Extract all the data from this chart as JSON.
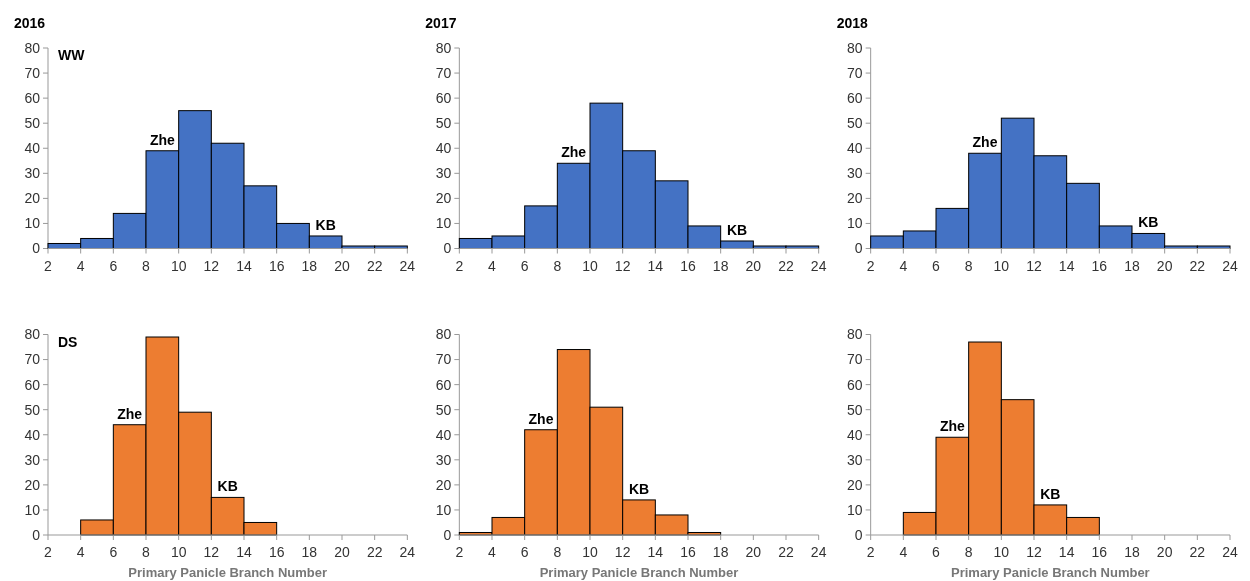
{
  "chart_data": [
    {
      "type": "histogram",
      "title": "2016",
      "bins": [
        2,
        4,
        6,
        8,
        10,
        12,
        14,
        16,
        18,
        20,
        22,
        24
      ],
      "values": [
        2,
        4,
        14,
        39,
        55,
        42,
        25,
        10,
        5,
        1,
        1
      ],
      "color": "#4472c4",
      "xlim": [
        2,
        24
      ],
      "xticks": [
        2,
        4,
        6,
        8,
        10,
        12,
        14,
        16,
        18,
        20,
        22,
        24
      ],
      "ylim": [
        0,
        80
      ],
      "yticks": [
        0,
        10,
        20,
        30,
        40,
        50,
        60,
        70,
        80
      ],
      "annotations": [
        "WW",
        {
          "text": "Zhe",
          "x": 9,
          "y": 39
        },
        {
          "text": "KB",
          "x": 19,
          "y": 5
        }
      ]
    },
    {
      "type": "histogram",
      "title": "2017",
      "bins": [
        2,
        4,
        6,
        8,
        10,
        12,
        14,
        16,
        18,
        20,
        22,
        24
      ],
      "values": [
        4,
        5,
        17,
        34,
        58,
        39,
        27,
        9,
        3,
        1,
        1
      ],
      "color": "#4472c4",
      "xlim": [
        2,
        24
      ],
      "xticks": [
        2,
        4,
        6,
        8,
        10,
        12,
        14,
        16,
        18,
        20,
        22,
        24
      ],
      "ylim": [
        0,
        80
      ],
      "yticks": [
        0,
        10,
        20,
        30,
        40,
        50,
        60,
        70,
        80
      ],
      "annotations": [
        {
          "text": "Zhe",
          "x": 9,
          "y": 34
        },
        {
          "text": "KB",
          "x": 19,
          "y": 3
        }
      ]
    },
    {
      "type": "histogram",
      "title": "2018",
      "bins": [
        2,
        4,
        6,
        8,
        10,
        12,
        14,
        16,
        18,
        20,
        22,
        24
      ],
      "values": [
        5,
        7,
        16,
        38,
        52,
        37,
        26,
        9,
        6,
        1,
        1
      ],
      "color": "#4472c4",
      "xlim": [
        2,
        24
      ],
      "xticks": [
        2,
        4,
        6,
        8,
        10,
        12,
        14,
        16,
        18,
        20,
        22,
        24
      ],
      "ylim": [
        0,
        80
      ],
      "yticks": [
        0,
        10,
        20,
        30,
        40,
        50,
        60,
        70,
        80
      ],
      "annotations": [
        {
          "text": "Zhe",
          "x": 9,
          "y": 38
        },
        {
          "text": "KB",
          "x": 19,
          "y": 6
        }
      ]
    },
    {
      "type": "histogram",
      "xlabel": "Primary Panicle Branch Number",
      "bins": [
        2,
        4,
        6,
        8,
        10,
        12,
        14,
        16,
        18,
        20,
        22,
        24
      ],
      "values": [
        0,
        6,
        44,
        79,
        49,
        15,
        5,
        0,
        0,
        0,
        0
      ],
      "color": "#ed7d31",
      "xlim": [
        2,
        24
      ],
      "xticks": [
        2,
        4,
        6,
        8,
        10,
        12,
        14,
        16,
        18,
        20,
        22,
        24
      ],
      "ylim": [
        0,
        80
      ],
      "yticks": [
        0,
        10,
        20,
        30,
        40,
        50,
        60,
        70,
        80
      ],
      "annotations": [
        "DS",
        {
          "text": "Zhe",
          "x": 7,
          "y": 44
        },
        {
          "text": "KB",
          "x": 13,
          "y": 15
        }
      ]
    },
    {
      "type": "histogram",
      "xlabel": "Primary Panicle Branch Number",
      "bins": [
        2,
        4,
        6,
        8,
        10,
        12,
        14,
        16,
        18,
        20,
        22,
        24
      ],
      "values": [
        1,
        7,
        42,
        74,
        51,
        14,
        8,
        1,
        0,
        0,
        0
      ],
      "color": "#ed7d31",
      "xlim": [
        2,
        24
      ],
      "xticks": [
        2,
        4,
        6,
        8,
        10,
        12,
        14,
        16,
        18,
        20,
        22,
        24
      ],
      "ylim": [
        0,
        80
      ],
      "yticks": [
        0,
        10,
        20,
        30,
        40,
        50,
        60,
        70,
        80
      ],
      "annotations": [
        {
          "text": "Zhe",
          "x": 7,
          "y": 42
        },
        {
          "text": "KB",
          "x": 13,
          "y": 14
        }
      ]
    },
    {
      "type": "histogram",
      "xlabel": "Primary Panicle Branch Number",
      "bins": [
        2,
        4,
        6,
        8,
        10,
        12,
        14,
        16,
        18,
        20,
        22,
        24
      ],
      "values": [
        0,
        9,
        39,
        77,
        54,
        12,
        7,
        0,
        0,
        0,
        0
      ],
      "color": "#ed7d31",
      "xlim": [
        2,
        24
      ],
      "xticks": [
        2,
        4,
        6,
        8,
        10,
        12,
        14,
        16,
        18,
        20,
        22,
        24
      ],
      "ylim": [
        0,
        80
      ],
      "yticks": [
        0,
        10,
        20,
        30,
        40,
        50,
        60,
        70,
        80
      ],
      "annotations": [
        {
          "text": "Zhe",
          "x": 7,
          "y": 39
        },
        {
          "text": "KB",
          "x": 13,
          "y": 12
        }
      ]
    }
  ]
}
